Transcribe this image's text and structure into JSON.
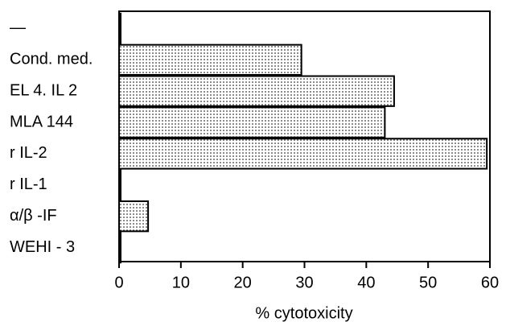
{
  "chart_data": {
    "type": "hbar",
    "categories": [
      "—",
      "Cond. med.",
      "EL 4. IL 2",
      "MLA 144",
      "r IL-2",
      "r IL-1",
      "α/β -IF",
      "WEHI - 3"
    ],
    "values": [
      0,
      29.5,
      44.5,
      43,
      59.5,
      0,
      4.7,
      0
    ],
    "color": "#000000",
    "xlabel": "% cytotoxicity",
    "xlim": [
      0,
      60
    ],
    "xticks": [
      0,
      10,
      20,
      30,
      40,
      50,
      60
    ],
    "grid": false
  }
}
